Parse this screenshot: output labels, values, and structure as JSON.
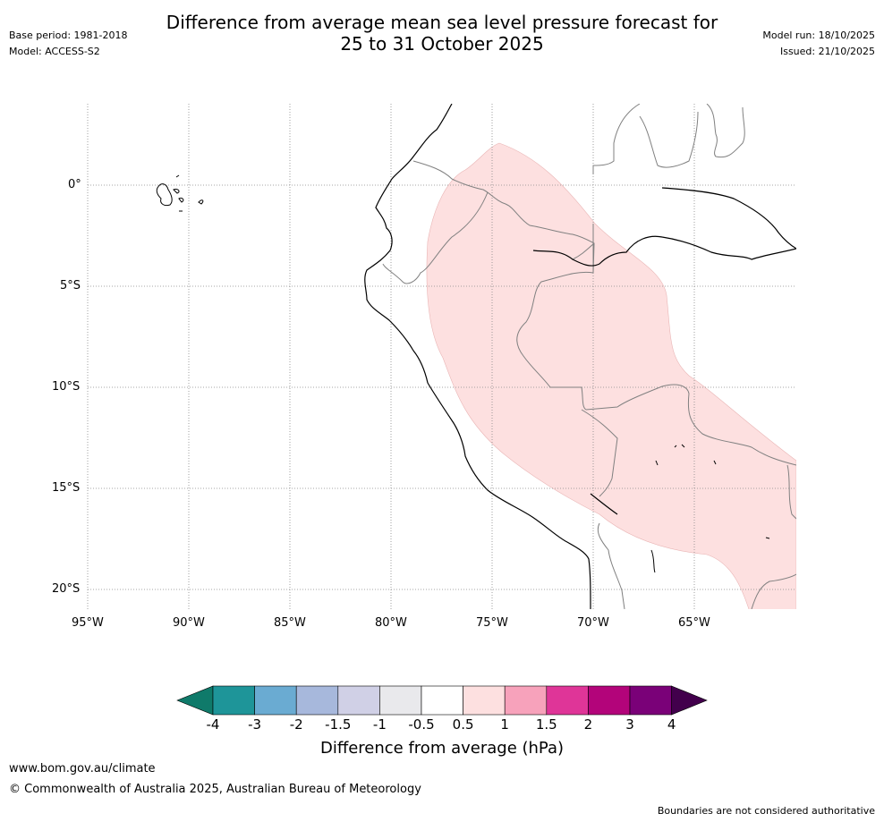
{
  "header": {
    "title_line1": "Difference from average mean sea level pressure forecast for",
    "title_line2": "25 to 31 October 2025",
    "base_period": "Base period: 1981-2018",
    "model": "Model: ACCESS-S2",
    "model_run": "Model run: 18/10/2025",
    "issued": "Issued: 21/10/2025"
  },
  "map": {
    "lat_labels": [
      "0°",
      "5°S",
      "10°S",
      "15°S",
      "20°S"
    ],
    "lon_labels": [
      "95°W",
      "90°W",
      "85°W",
      "80°W",
      "75°W",
      "70°W",
      "65°W"
    ],
    "anomaly_category": "0.5 to 1"
  },
  "colorbar": {
    "ticks": [
      "-4",
      "-3",
      "-2",
      "-1.5",
      "-1",
      "-0.5",
      "0.5",
      "1",
      "1.5",
      "2",
      "3",
      "4"
    ],
    "colors": [
      "#0f7a6a",
      "#1e9599",
      "#6aabd2",
      "#a7b8dc",
      "#d0d0e6",
      "#e9e9ec",
      "#ffffff",
      "#fde0e0",
      "#f7a2bb",
      "#df3598",
      "#b3047a",
      "#7a0178",
      "#42004c"
    ],
    "title": "Difference from average (hPa)"
  },
  "footer": {
    "website": "www.bom.gov.au/climate",
    "copyright": "© Commonwealth of Australia 2025, Australian Bureau of Meteorology",
    "disclaimer": "Boundaries are not considered authoritative"
  }
}
